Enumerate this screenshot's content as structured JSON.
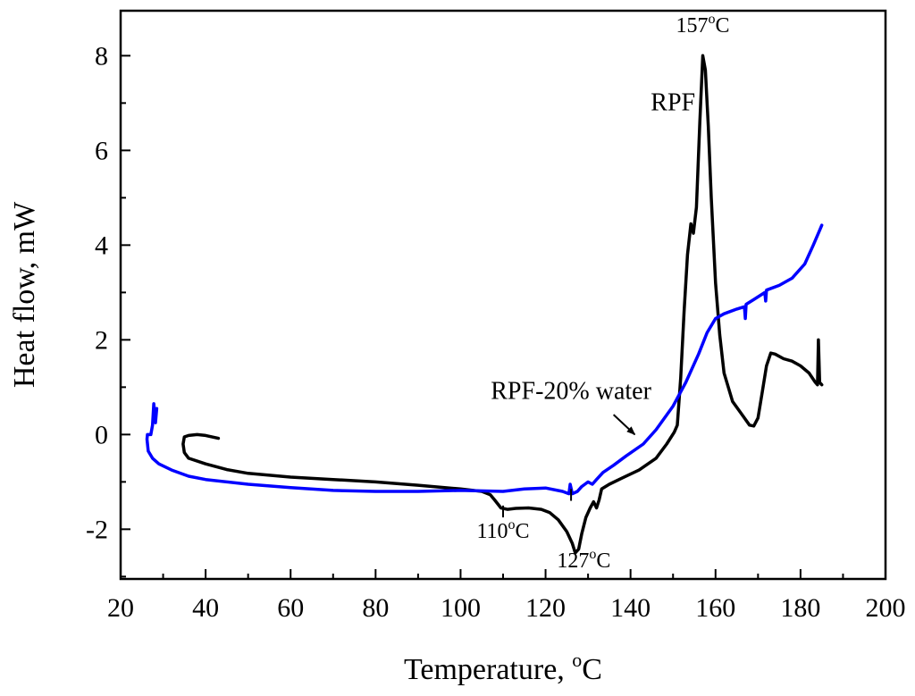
{
  "chart_data": {
    "type": "line",
    "xlabel_main": "Temperature, ",
    "xlabel_sup": "o",
    "xlabel_unit": "C",
    "ylabel": "Heat flow, mW",
    "xlim": [
      20,
      200
    ],
    "ylim": [
      -3.05,
      8.95
    ],
    "x_ticks": [
      20,
      40,
      60,
      80,
      100,
      120,
      140,
      160,
      180,
      200
    ],
    "y_ticks": [
      -2,
      0,
      2,
      4,
      6,
      8
    ],
    "series": [
      {
        "name": "RPF",
        "color": "#000000",
        "points": [
          [
            43,
            -0.08
          ],
          [
            40,
            -0.02
          ],
          [
            38,
            -0.0
          ],
          [
            36,
            -0.02
          ],
          [
            35,
            -0.05
          ],
          [
            34.7,
            -0.2
          ],
          [
            35,
            -0.38
          ],
          [
            36,
            -0.5
          ],
          [
            40,
            -0.62
          ],
          [
            45,
            -0.74
          ],
          [
            50,
            -0.82
          ],
          [
            60,
            -0.9
          ],
          [
            70,
            -0.95
          ],
          [
            80,
            -1.0
          ],
          [
            90,
            -1.07
          ],
          [
            100,
            -1.15
          ],
          [
            105,
            -1.2
          ],
          [
            107,
            -1.27
          ],
          [
            108,
            -1.38
          ],
          [
            109.5,
            -1.55
          ],
          [
            111,
            -1.58
          ],
          [
            113,
            -1.56
          ],
          [
            116,
            -1.55
          ],
          [
            119,
            -1.58
          ],
          [
            121,
            -1.65
          ],
          [
            123,
            -1.8
          ],
          [
            125,
            -2.05
          ],
          [
            126.3,
            -2.3
          ],
          [
            127,
            -2.5
          ],
          [
            127.8,
            -2.42
          ],
          [
            128.5,
            -2.1
          ],
          [
            129.5,
            -1.75
          ],
          [
            130.5,
            -1.55
          ],
          [
            131.3,
            -1.42
          ],
          [
            132,
            -1.55
          ],
          [
            132.6,
            -1.38
          ],
          [
            133.2,
            -1.15
          ],
          [
            135,
            -1.05
          ],
          [
            138,
            -0.92
          ],
          [
            142,
            -0.75
          ],
          [
            146,
            -0.5
          ],
          [
            148.5,
            -0.2
          ],
          [
            150.3,
            0.05
          ],
          [
            151,
            0.2
          ],
          [
            151.8,
            1.2
          ],
          [
            152.6,
            2.6
          ],
          [
            153.4,
            3.8
          ],
          [
            154.2,
            4.45
          ],
          [
            154.8,
            4.25
          ],
          [
            155.5,
            4.8
          ],
          [
            156.3,
            6.6
          ],
          [
            157,
            8.0
          ],
          [
            157.6,
            7.7
          ],
          [
            158.3,
            6.5
          ],
          [
            159,
            5.0
          ],
          [
            160,
            3.2
          ],
          [
            161,
            2.1
          ],
          [
            162,
            1.3
          ],
          [
            164,
            0.7
          ],
          [
            166,
            0.45
          ],
          [
            168,
            0.2
          ],
          [
            169,
            0.18
          ],
          [
            170,
            0.35
          ],
          [
            171,
            0.9
          ],
          [
            172,
            1.45
          ],
          [
            173,
            1.72
          ],
          [
            174,
            1.7
          ],
          [
            176,
            1.6
          ],
          [
            178,
            1.55
          ],
          [
            180,
            1.45
          ],
          [
            182,
            1.3
          ],
          [
            183.5,
            1.1
          ],
          [
            184,
            1.05
          ],
          [
            184.2,
            2.0
          ],
          [
            184.5,
            1.1
          ],
          [
            185,
            1.05
          ]
        ]
      },
      {
        "name": "RPF-20% water",
        "color": "#0000ff",
        "points": [
          [
            28.5,
            0.55
          ],
          [
            28.2,
            0.25
          ],
          [
            27.8,
            0.65
          ],
          [
            27.5,
            0.2
          ],
          [
            27.1,
            0.0
          ],
          [
            26.8,
            0.0
          ],
          [
            26.3,
            0.0
          ],
          [
            26.2,
            -0.1
          ],
          [
            26.5,
            -0.35
          ],
          [
            27.5,
            -0.5
          ],
          [
            29,
            -0.62
          ],
          [
            32,
            -0.75
          ],
          [
            36,
            -0.88
          ],
          [
            40,
            -0.95
          ],
          [
            50,
            -1.05
          ],
          [
            60,
            -1.12
          ],
          [
            70,
            -1.18
          ],
          [
            80,
            -1.2
          ],
          [
            90,
            -1.2
          ],
          [
            100,
            -1.18
          ],
          [
            110,
            -1.2
          ],
          [
            115,
            -1.15
          ],
          [
            120,
            -1.13
          ],
          [
            124,
            -1.2
          ],
          [
            125.5,
            -1.25
          ],
          [
            125.8,
            -1.05
          ],
          [
            126.3,
            -1.25
          ],
          [
            127.5,
            -1.2
          ],
          [
            128.5,
            -1.1
          ],
          [
            130,
            -1.0
          ],
          [
            131,
            -1.05
          ],
          [
            132,
            -0.95
          ],
          [
            133.5,
            -0.8
          ],
          [
            136,
            -0.65
          ],
          [
            139,
            -0.45
          ],
          [
            143,
            -0.2
          ],
          [
            146,
            0.1
          ],
          [
            150,
            0.6
          ],
          [
            153,
            1.1
          ],
          [
            156,
            1.7
          ],
          [
            158,
            2.15
          ],
          [
            160,
            2.45
          ],
          [
            162,
            2.55
          ],
          [
            165,
            2.65
          ],
          [
            166.8,
            2.7
          ],
          [
            167,
            2.45
          ],
          [
            167.2,
            2.75
          ],
          [
            169,
            2.85
          ],
          [
            171.6,
            3.0
          ],
          [
            171.8,
            2.82
          ],
          [
            172,
            3.05
          ],
          [
            175,
            3.15
          ],
          [
            178,
            3.3
          ],
          [
            181,
            3.6
          ],
          [
            183,
            4.0
          ],
          [
            185,
            4.42
          ]
        ]
      }
    ],
    "annotations": [
      {
        "id": "peak157",
        "main": "157",
        "sup": "o",
        "unit": "C",
        "x": 157,
        "y": 8.5
      },
      {
        "id": "rpf",
        "main": "RPF",
        "x": 150,
        "y": 6.85
      },
      {
        "id": "rpfwater",
        "main": "RPF-20% water",
        "x": 126,
        "y": 0.75
      },
      {
        "id": "t110",
        "main": "110",
        "sup": "o",
        "unit": "C",
        "x": 110,
        "y": -2.18
      },
      {
        "id": "t127",
        "main": "127",
        "sup": "o",
        "unit": "C",
        "x": 129,
        "y": -2.8
      }
    ],
    "arrow": {
      "from": [
        136,
        0.42
      ],
      "to": [
        141,
        0.0
      ]
    },
    "markers": [
      {
        "x": 110,
        "y_from": -1.5,
        "y_to": -1.75
      },
      {
        "x": 126,
        "y_from": -1.15,
        "y_to": -1.4
      }
    ]
  }
}
